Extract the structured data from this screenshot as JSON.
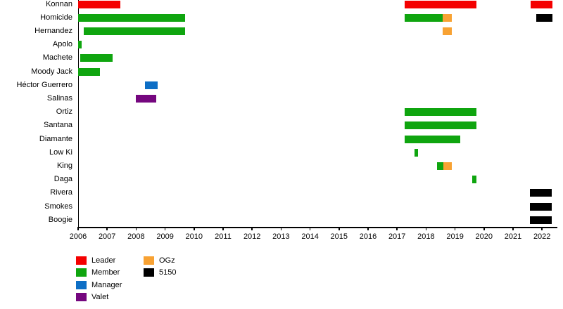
{
  "chart_data": {
    "type": "timeline-gantt",
    "title": "",
    "x_axis": {
      "min": 2006,
      "max": 2022.45,
      "tick_years": [
        2006,
        2007,
        2008,
        2009,
        2010,
        2011,
        2012,
        2013,
        2014,
        2015,
        2016,
        2017,
        2018,
        2019,
        2020,
        2021,
        2022
      ]
    },
    "colors": {
      "Leader": "#f40000",
      "Member": "#0fa50f",
      "Manager": "#0d6ec5",
      "Valet": "#75077f",
      "OGz": "#f8a233",
      "5150": "#000000"
    },
    "legend": [
      {
        "label": "Leader",
        "role": "Leader"
      },
      {
        "label": "Member",
        "role": "Member"
      },
      {
        "label": "Manager",
        "role": "Manager"
      },
      {
        "label": "Valet",
        "role": "Valet"
      },
      {
        "label": "OGz",
        "role": "OGz"
      },
      {
        "label": "5150",
        "role": "5150"
      }
    ],
    "rows": [
      {
        "label": "Konnan",
        "segments": [
          {
            "start": 2006.0,
            "end": 2007.45,
            "role": "Leader"
          },
          {
            "start": 2017.25,
            "end": 2019.73,
            "role": "Leader"
          },
          {
            "start": 2021.6,
            "end": 2022.35,
            "role": "Leader"
          }
        ]
      },
      {
        "label": "Homicide",
        "segments": [
          {
            "start": 2006.0,
            "end": 2009.7,
            "role": "Member"
          },
          {
            "start": 2017.25,
            "end": 2018.57,
            "role": "Member"
          },
          {
            "start": 2018.57,
            "end": 2018.88,
            "role": "OGz"
          },
          {
            "start": 2021.8,
            "end": 2022.35,
            "role": "5150"
          }
        ]
      },
      {
        "label": "Hernandez",
        "segments": [
          {
            "start": 2006.2,
            "end": 2009.7,
            "role": "Member"
          },
          {
            "start": 2018.57,
            "end": 2018.88,
            "role": "OGz"
          }
        ]
      },
      {
        "label": "Apolo",
        "segments": [
          {
            "start": 2006.0,
            "end": 2006.12,
            "role": "Member"
          }
        ]
      },
      {
        "label": "Machete",
        "segments": [
          {
            "start": 2006.07,
            "end": 2007.2,
            "role": "Member"
          }
        ]
      },
      {
        "label": "Moody Jack",
        "segments": [
          {
            "start": 2006.0,
            "end": 2006.75,
            "role": "Member"
          }
        ]
      },
      {
        "label": "Héctor Guerrero",
        "segments": [
          {
            "start": 2008.3,
            "end": 2008.74,
            "role": "Manager"
          }
        ]
      },
      {
        "label": "Salinas",
        "segments": [
          {
            "start": 2008.0,
            "end": 2008.7,
            "role": "Valet"
          }
        ]
      },
      {
        "label": "Ortiz",
        "segments": [
          {
            "start": 2017.25,
            "end": 2019.73,
            "role": "Member"
          }
        ]
      },
      {
        "label": "Santana",
        "segments": [
          {
            "start": 2017.25,
            "end": 2019.73,
            "role": "Member"
          }
        ]
      },
      {
        "label": "Diamante",
        "segments": [
          {
            "start": 2017.25,
            "end": 2019.18,
            "role": "Member"
          }
        ]
      },
      {
        "label": "Low Ki",
        "segments": [
          {
            "start": 2017.6,
            "end": 2017.72,
            "role": "Member"
          }
        ]
      },
      {
        "label": "King",
        "segments": [
          {
            "start": 2018.37,
            "end": 2018.6,
            "role": "Member"
          },
          {
            "start": 2018.6,
            "end": 2018.88,
            "role": "OGz"
          }
        ]
      },
      {
        "label": "Daga",
        "segments": [
          {
            "start": 2019.6,
            "end": 2019.73,
            "role": "Member"
          }
        ]
      },
      {
        "label": "Rivera",
        "segments": [
          {
            "start": 2021.58,
            "end": 2022.33,
            "role": "5150"
          }
        ]
      },
      {
        "label": "Smokes",
        "segments": [
          {
            "start": 2021.58,
            "end": 2022.33,
            "role": "5150"
          }
        ]
      },
      {
        "label": "Boogie",
        "segments": [
          {
            "start": 2021.58,
            "end": 2022.33,
            "role": "5150"
          }
        ]
      }
    ],
    "legend_position": "bottom-left",
    "grid": false
  }
}
